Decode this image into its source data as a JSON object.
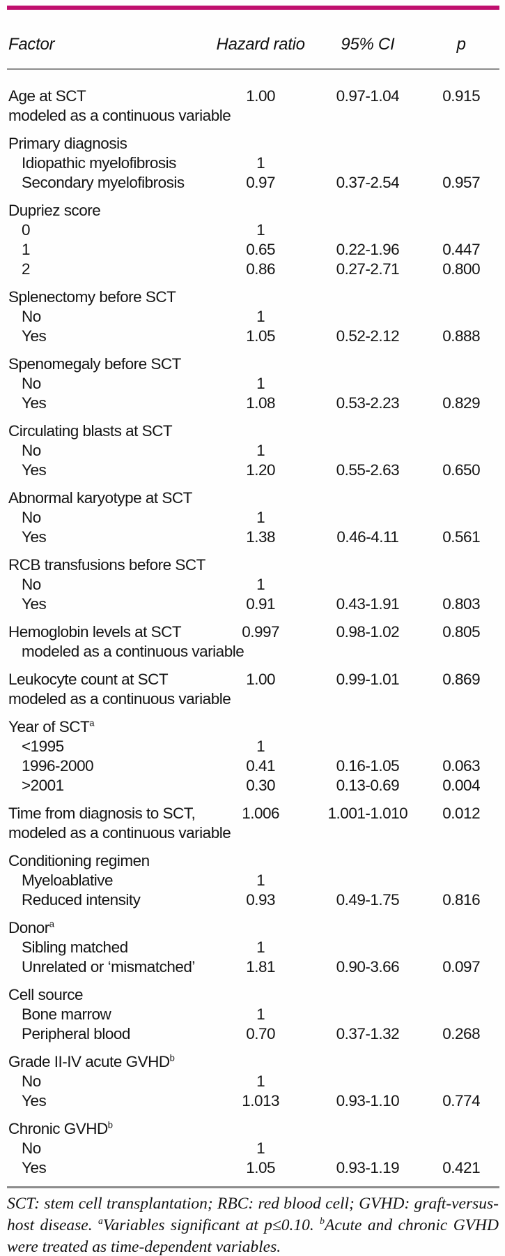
{
  "accent_color": "#c00f6e",
  "rule_color": "#8c8c8c",
  "table": {
    "columns": [
      "Factor",
      "Hazard ratio",
      "95% CI",
      "p"
    ],
    "groups": [
      {
        "rows": [
          {
            "label": "Age at SCT",
            "hr": "1.00",
            "ci": "0.97-1.04",
            "p": "0.915"
          },
          {
            "label": "modeled as a continuous variable"
          }
        ]
      },
      {
        "rows": [
          {
            "label": "Primary diagnosis"
          },
          {
            "label": "Idiopathic myelofibrosis",
            "indent": 1,
            "hr": "1"
          },
          {
            "label": "Secondary myelofibrosis",
            "indent": 1,
            "hr": "0.97",
            "ci": "0.37-2.54",
            "p": "0.957"
          }
        ]
      },
      {
        "rows": [
          {
            "label": "Dupriez score"
          },
          {
            "label": "0",
            "indent": 1,
            "hr": "1"
          },
          {
            "label": "1",
            "indent": 1,
            "hr": "0.65",
            "ci": "0.22-1.96",
            "p": "0.447"
          },
          {
            "label": "2",
            "indent": 1,
            "hr": "0.86",
            "ci": "0.27-2.71",
            "p": "0.800"
          }
        ]
      },
      {
        "rows": [
          {
            "label": "Splenectomy before SCT"
          },
          {
            "label": "No",
            "indent": 1,
            "hr": "1"
          },
          {
            "label": "Yes",
            "indent": 1,
            "hr": "1.05",
            "ci": "0.52-2.12",
            "p": "0.888"
          }
        ]
      },
      {
        "rows": [
          {
            "label": "Spenomegaly before SCT"
          },
          {
            "label": "No",
            "indent": 1,
            "hr": "1"
          },
          {
            "label": "Yes",
            "indent": 1,
            "hr": "1.08",
            "ci": "0.53-2.23",
            "p": "0.829"
          }
        ]
      },
      {
        "rows": [
          {
            "label": "Circulating blasts at SCT"
          },
          {
            "label": "No",
            "indent": 1,
            "hr": "1"
          },
          {
            "label": "Yes",
            "indent": 1,
            "hr": "1.20",
            "ci": "0.55-2.63",
            "p": "0.650"
          }
        ]
      },
      {
        "rows": [
          {
            "label": "Abnormal karyotype at SCT"
          },
          {
            "label": "No",
            "indent": 1,
            "hr": "1"
          },
          {
            "label": "Yes",
            "indent": 1,
            "hr": "1.38",
            "ci": "0.46-4.11",
            "p": "0.561"
          }
        ]
      },
      {
        "rows": [
          {
            "label": "RCB transfusions before SCT"
          },
          {
            "label": "No",
            "indent": 1,
            "hr": "1"
          },
          {
            "label": "Yes",
            "indent": 1,
            "hr": "0.91",
            "ci": "0.43-1.91",
            "p": "0.803"
          }
        ]
      },
      {
        "rows": [
          {
            "label": "Hemoglobin levels at SCT",
            "hr": "0.997",
            "ci": "0.98-1.02",
            "p": "0.805"
          },
          {
            "label": "modeled as a continuous variable",
            "indent": 1
          }
        ]
      },
      {
        "rows": [
          {
            "label": "Leukocyte count at SCT",
            "hr": "1.00",
            "ci": "0.99-1.01",
            "p": "0.869"
          },
          {
            "label": "modeled as a continuous variable"
          }
        ]
      },
      {
        "rows": [
          {
            "label": "Year of SCT",
            "sup": "a"
          },
          {
            "label": "<1995",
            "indent": 1,
            "hr": "1"
          },
          {
            "label": "1996-2000",
            "indent": 1,
            "hr": "0.41",
            "ci": "0.16-1.05",
            "p": "0.063"
          },
          {
            "label": ">2001",
            "indent": 1,
            "hr": "0.30",
            "ci": "0.13-0.69",
            "p": "0.004"
          }
        ]
      },
      {
        "rows": [
          {
            "label": "Time from diagnosis to SCT,",
            "hr": "1.006",
            "ci": "1.001-1.010",
            "p": "0.012"
          },
          {
            "label": "modeled as a continuous variable"
          }
        ]
      },
      {
        "rows": [
          {
            "label": "Conditioning regimen"
          },
          {
            "label": "Myeloablative",
            "indent": 1,
            "hr": "1"
          },
          {
            "label": "Reduced intensity",
            "indent": 1,
            "hr": "0.93",
            "ci": "0.49-1.75",
            "p": "0.816"
          }
        ]
      },
      {
        "rows": [
          {
            "label": "Donor",
            "sup": "a"
          },
          {
            "label": "Sibling matched",
            "indent": 1,
            "hr": "1"
          },
          {
            "label": "Unrelated or ‘mismatched’",
            "indent": 1,
            "hr": "1.81",
            "ci": "0.90-3.66",
            "p": "0.097"
          }
        ]
      },
      {
        "rows": [
          {
            "label": "Cell source"
          },
          {
            "label": "Bone marrow",
            "indent": 1,
            "hr": "1"
          },
          {
            "label": "Peripheral blood",
            "indent": 1,
            "hr": "0.70",
            "ci": "0.37-1.32",
            "p": "0.268"
          }
        ]
      },
      {
        "rows": [
          {
            "label": "Grade II-IV acute GVHD",
            "sup": "b"
          },
          {
            "label": "No",
            "indent": 1,
            "hr": "1"
          },
          {
            "label": "Yes",
            "indent": 1,
            "hr": "1.013",
            "ci": "0.93-1.10",
            "p": "0.774"
          }
        ]
      },
      {
        "rows": [
          {
            "label": "Chronic GVHD",
            "sup": "b"
          },
          {
            "label": "No",
            "indent": 1,
            "hr": "1"
          },
          {
            "label": "Yes",
            "indent": 1,
            "hr": "1.05",
            "ci": "0.93-1.19",
            "p": "0.421"
          }
        ]
      }
    ]
  },
  "footnote": {
    "segments": [
      {
        "text": "SCT: stem cell transplantation; RBC: red blood cell; GVHD: graft-versus-host disease. "
      },
      {
        "sup": "a"
      },
      {
        "text": "Variables significant at p≤0.10. "
      },
      {
        "sup": "b"
      },
      {
        "text": "Acute and chronic GVHD were treated as time-dependent variables."
      }
    ]
  }
}
